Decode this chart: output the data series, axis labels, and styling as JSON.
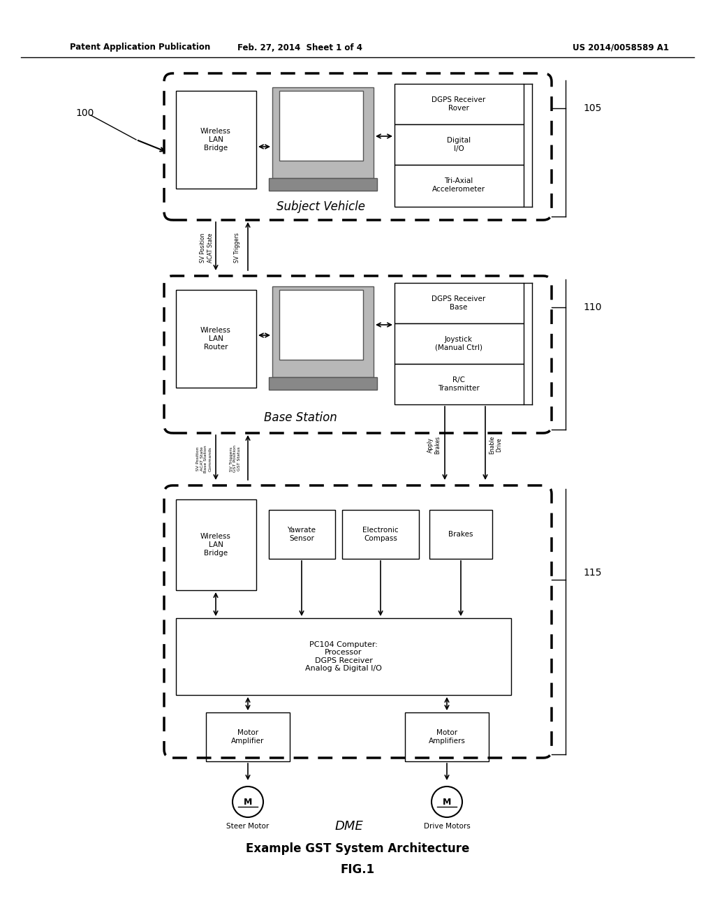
{
  "bg_color": "#ffffff",
  "text_color": "#000000",
  "header_left": "Patent Application Publication",
  "header_mid": "Feb. 27, 2014  Sheet 1 of 4",
  "header_right": "US 2014/0058589 A1",
  "caption_line1": "Example GST System Architecture",
  "caption_line2": "FIG.1",
  "label_100": "100",
  "label_105": "105",
  "label_110": "110",
  "label_115": "115"
}
